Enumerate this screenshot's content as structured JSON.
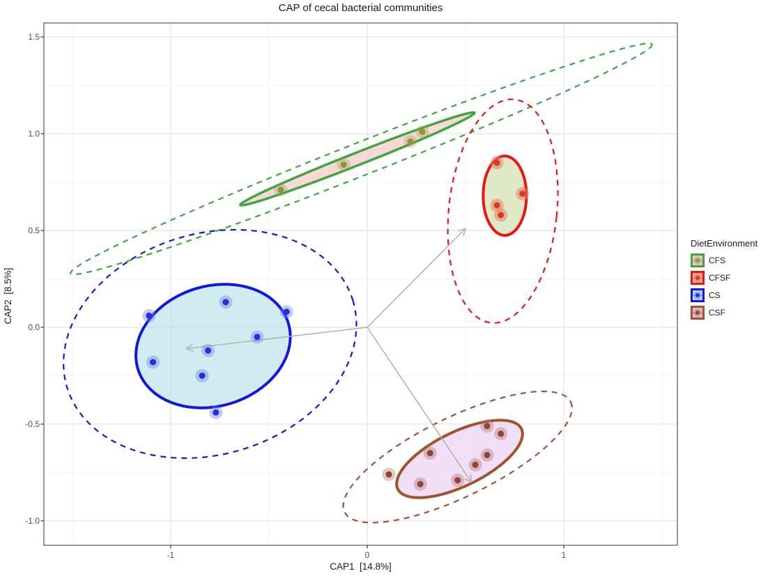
{
  "title": "CAP of cecal bacterial communities",
  "legend": {
    "title": "DietEnvironment"
  },
  "chart_data": {
    "type": "scatter",
    "title": "CAP of cecal bacterial communities",
    "xlabel": "CAP1  [14.8%]",
    "ylabel": "CAP2  [8.5%]",
    "xlim": [
      -1.645,
      1.578
    ],
    "ylim": [
      -1.126,
      1.572
    ],
    "x_ticks": [
      -1,
      0,
      1
    ],
    "x_tick_labels": [
      "-1",
      "0",
      "1"
    ],
    "y_ticks": [
      1.5,
      1.0,
      0.5,
      0.0,
      -0.5,
      -1.0
    ],
    "y_tick_labels": [
      "1.5",
      "1.0",
      "0.5",
      "0.0",
      "-0.5",
      "-1.0"
    ],
    "grid": true,
    "legend_position": "right",
    "legend_title": "DietEnvironment",
    "panel_border_color": "#555555",
    "grid_major_color": "#e7e7e7",
    "grid_minor_color": "#f3f3f3",
    "arrow_color": "#b7aea8",
    "arrows": [
      {
        "from": [
          0,
          0
        ],
        "to": [
          0.5,
          0.51
        ]
      },
      {
        "from": [
          0,
          0
        ],
        "to": [
          -0.92,
          -0.11
        ]
      },
      {
        "from": [
          0,
          0
        ],
        "to": [
          0.53,
          -0.8
        ]
      }
    ],
    "series": [
      {
        "name": "CFS",
        "stroke": "#3ea63e",
        "fill": "rgba(246,200,198,0.70)",
        "point_color": "#8f9340",
        "halo_color": "rgba(150,155,70,0.32)",
        "key_bg": "#ecc9c3",
        "points": [
          [
            -0.44,
            0.71
          ],
          [
            -0.12,
            0.84
          ],
          [
            0.22,
            0.96
          ],
          [
            0.28,
            1.01
          ]
        ],
        "solid_ellipse": {
          "cx": -0.05,
          "cy": 0.87,
          "rx": 0.64,
          "ry": 0.032,
          "angle": 21.5
        },
        "dashed_ellipse": {
          "cx": -0.03,
          "cy": 0.87,
          "rx": 1.59,
          "ry": 0.085,
          "angle": 21.5
        }
      },
      {
        "name": "CFSF",
        "stroke": "#ec1515",
        "fill": "rgba(215,228,183,0.80)",
        "point_color": "#d53c22",
        "halo_color": "rgba(233,125,95,0.55)",
        "key_bg": "#e9af9e",
        "points": [
          [
            0.66,
            0.85
          ],
          [
            0.79,
            0.69
          ],
          [
            0.66,
            0.63
          ],
          [
            0.68,
            0.58
          ]
        ],
        "solid_ellipse": {
          "cx": 0.7,
          "cy": 0.68,
          "rx": 0.11,
          "ry": 0.205,
          "angle": 0
        },
        "dashed_ellipse": {
          "cx": 0.69,
          "cy": 0.6,
          "rx": 0.275,
          "ry": 0.58,
          "angle": -6
        }
      },
      {
        "name": "CS",
        "stroke": "#1515e0",
        "fill": "rgba(183,226,232,0.65)",
        "point_color": "#2a2ae0",
        "halo_color": "rgba(110,130,238,0.42)",
        "key_bg": "#bdd8ef",
        "points": [
          [
            -0.72,
            0.13
          ],
          [
            -1.11,
            0.06
          ],
          [
            -0.41,
            0.08
          ],
          [
            -0.56,
            -0.05
          ],
          [
            -0.81,
            -0.12
          ],
          [
            -1.09,
            -0.18
          ],
          [
            -0.84,
            -0.25
          ],
          [
            -0.77,
            -0.44
          ]
        ],
        "solid_ellipse": {
          "cx": -0.784,
          "cy": -0.097,
          "rx": 0.4,
          "ry": 0.31,
          "angle": 17
        },
        "dashed_ellipse": {
          "cx": -0.8,
          "cy": -0.086,
          "rx": 0.76,
          "ry": 0.57,
          "angle": 17
        }
      },
      {
        "name": "CSF",
        "stroke": "#a0522d",
        "fill": "rgba(234,206,243,0.65)",
        "point_color": "#8e4437",
        "halo_color": "rgba(185,115,105,0.40)",
        "key_bg": "#e2c2d0",
        "points": [
          [
            0.61,
            -0.51
          ],
          [
            0.68,
            -0.55
          ],
          [
            0.32,
            -0.65
          ],
          [
            0.61,
            -0.66
          ],
          [
            0.55,
            -0.71
          ],
          [
            0.11,
            -0.76
          ],
          [
            0.27,
            -0.81
          ],
          [
            0.46,
            -0.79
          ]
        ],
        "solid_ellipse": {
          "cx": 0.47,
          "cy": -0.68,
          "rx": 0.35,
          "ry": 0.14,
          "angle": 26
        },
        "dashed_ellipse": {
          "cx": 0.46,
          "cy": -0.67,
          "rx": 0.64,
          "ry": 0.205,
          "angle": 26
        }
      }
    ]
  }
}
